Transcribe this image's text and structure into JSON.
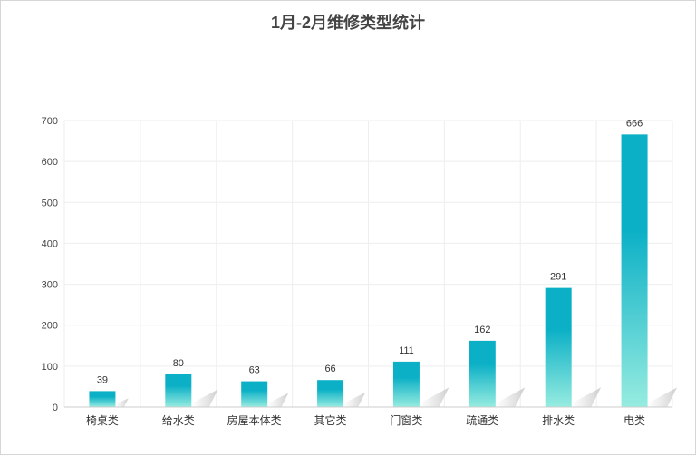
{
  "chart_data": {
    "type": "bar",
    "title": "1月-2月维修类型统计",
    "categories": [
      "椅桌类",
      "给水类",
      "房屋本体类",
      "其它类",
      "门窗类",
      "疏通类",
      "排水类",
      "电类"
    ],
    "values": [
      39,
      80,
      63,
      66,
      111,
      162,
      291,
      666
    ],
    "ylim": [
      0,
      700
    ],
    "yticks": [
      0,
      100,
      200,
      300,
      400,
      500,
      600,
      700
    ],
    "xlabel": "",
    "ylabel": "",
    "grid": true,
    "legend": "none",
    "colors": {
      "bar_top": "#0bb0c6",
      "bar_bottom": "#97ece0",
      "grid": "#eeeeee",
      "axis": "#cccccc"
    }
  }
}
